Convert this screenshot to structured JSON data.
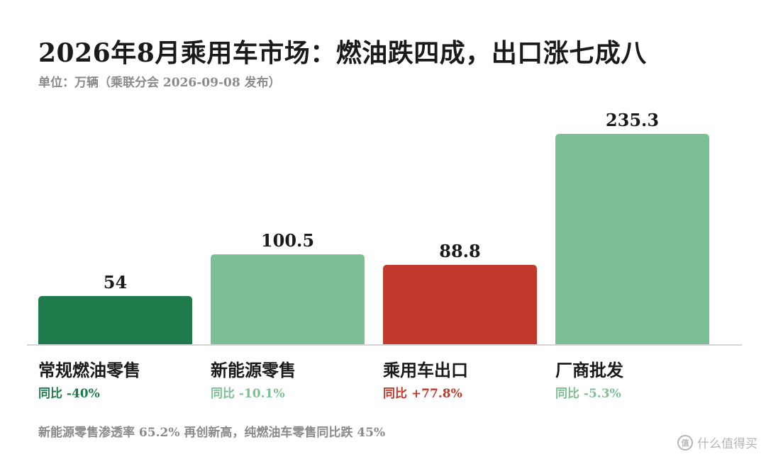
{
  "header": {
    "title": "2026年8月乘用车市场：燃油跌四成，出口涨七成八",
    "subtitle": "单位：万辆（乘联分会 2026-09-08 发布）"
  },
  "chart_data": {
    "type": "bar",
    "categories": [
      "常规燃油零售",
      "新能源零售",
      "乘用车出口",
      "厂商批发"
    ],
    "values": [
      54,
      100.5,
      88.8,
      235.3
    ],
    "value_labels": [
      "54",
      "100.5",
      "88.8",
      "235.3"
    ],
    "yoy": [
      "同比 -40%",
      "同比 -10.1%",
      "同比 +77.8%",
      "同比 -5.3%"
    ],
    "colors": [
      "#1f7a4c",
      "#7dbf94",
      "#c0392b",
      "#7dbf94"
    ],
    "ylim": [
      0,
      235.3
    ],
    "grid": false
  },
  "footnote": "新能源零售渗透率 65.2% 再创新高，纯燃油车零售同比跌 45%",
  "watermark": {
    "icon": "zhi-logo-icon",
    "icon_glyph": "值",
    "text": "什么值得买"
  }
}
